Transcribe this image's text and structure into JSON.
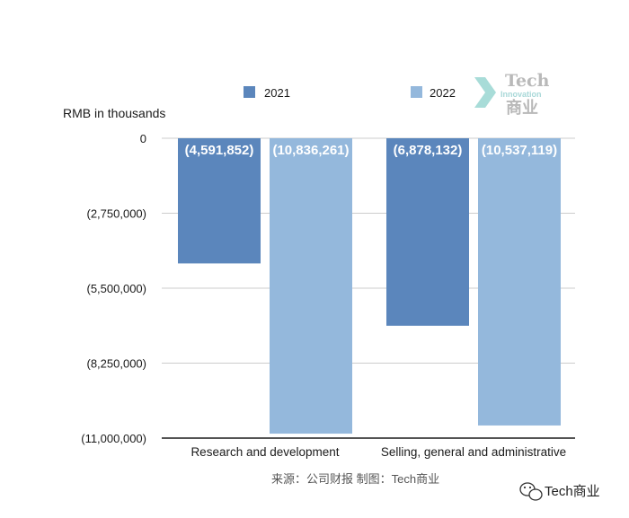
{
  "chart_data": {
    "type": "bar",
    "unit_label": "RMB in thousands",
    "categories": [
      "Research and development",
      "Selling, general and administrative"
    ],
    "series": [
      {
        "name": "2021",
        "color": "#5b86bc",
        "values": [
          -4591852,
          -6878132
        ],
        "labels": [
          "(4,591,852)",
          "(6,878,132)"
        ]
      },
      {
        "name": "2022",
        "color": "#94b8dc",
        "values": [
          -10836261,
          -10537119
        ],
        "labels": [
          "(10,836,261)",
          "(10,537,119)"
        ]
      }
    ],
    "ylim": [
      -11000000,
      0
    ],
    "yticks": [
      {
        "value": 0,
        "label": "0"
      },
      {
        "value": -2750000,
        "label": "(2,750,000)"
      },
      {
        "value": -5500000,
        "label": "(5,500,000)"
      },
      {
        "value": -8250000,
        "label": "(8,250,000)"
      },
      {
        "value": -11000000,
        "label": "(11,000,000)"
      }
    ],
    "grid": true,
    "legend_position": "top"
  },
  "source_note": "来源：公司财报 制图：Tech商业",
  "watermark": {
    "line1": "Tech",
    "line2": "Innovation",
    "line3": "商业",
    "accent": "#a8dcd8"
  },
  "footer_brand": "Tech商业"
}
